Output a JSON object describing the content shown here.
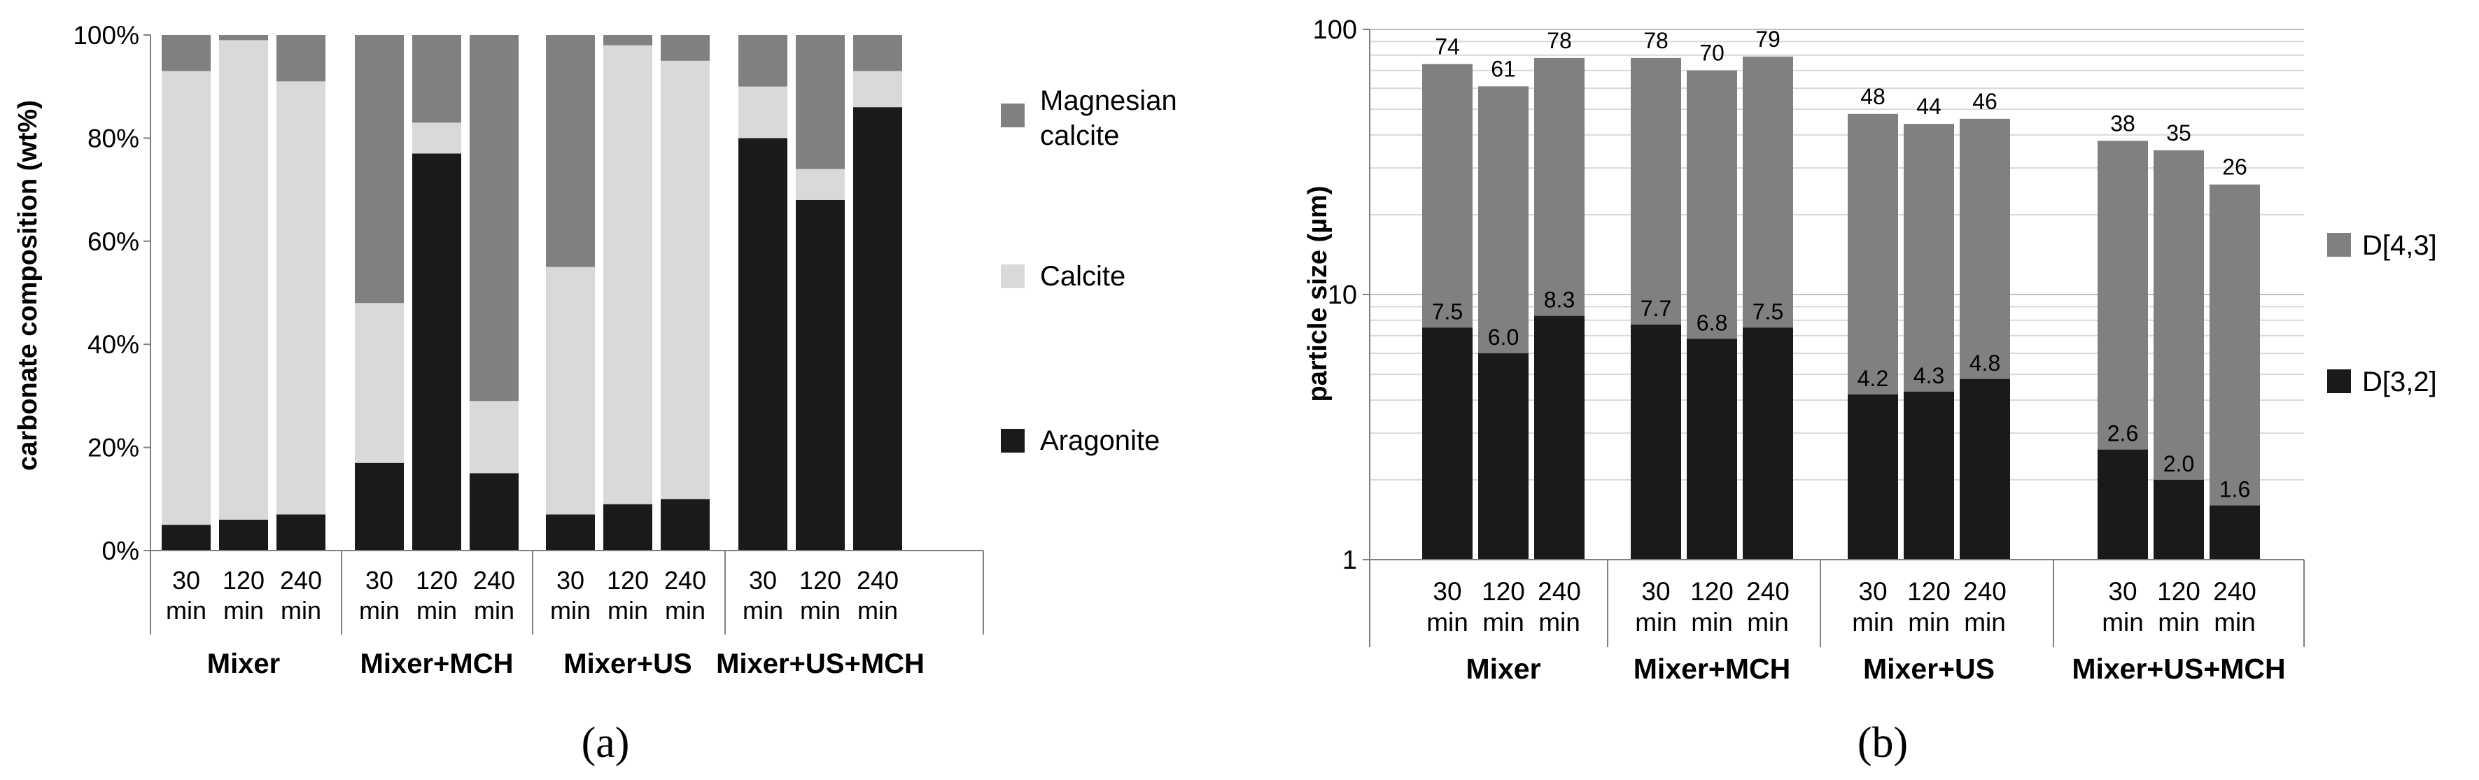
{
  "chart_data": [
    {
      "panel_label": "(a)",
      "type": "bar",
      "stacked": true,
      "ylabel": "carbonate composition (wt%)",
      "ylim": [
        0,
        100
      ],
      "yticks": [
        "0%",
        "20%",
        "40%",
        "60%",
        "80%",
        "100%"
      ],
      "y_tick_values": [
        0,
        20,
        40,
        60,
        80,
        100
      ],
      "groups": [
        {
          "name": "Mixer",
          "times": [
            "30 min",
            "120 min",
            "240 min"
          ]
        },
        {
          "name": "Mixer+MCH",
          "times": [
            "30 min",
            "120 min",
            "240 min"
          ]
        },
        {
          "name": "Mixer+US",
          "times": [
            "30 min",
            "120 min",
            "240 min"
          ]
        },
        {
          "name": "Mixer+US+MCH",
          "times": [
            "30 min",
            "120 min",
            "240 min"
          ]
        }
      ],
      "series": [
        {
          "name": "Aragonite",
          "color": "#1a1a1a",
          "values": [
            5,
            6,
            7,
            17,
            77,
            15,
            7,
            9,
            10,
            80,
            68,
            86
          ]
        },
        {
          "name": "Calcite",
          "color": "#d9d9d9",
          "values": [
            88,
            93,
            84,
            31,
            6,
            14,
            48,
            89,
            85,
            10,
            6,
            7
          ]
        },
        {
          "name": "Magnesian calcite",
          "color": "#808080",
          "values": [
            7,
            1,
            9,
            52,
            17,
            71,
            45,
            2,
            5,
            10,
            26,
            7
          ]
        }
      ],
      "legend_position": "right",
      "grid": false
    },
    {
      "panel_label": "(b)",
      "type": "bar",
      "overlapping": true,
      "ylabel": "particle size (µm)",
      "yscale": "log",
      "ylim": [
        1,
        100
      ],
      "yticks": [
        "1",
        "10",
        "100"
      ],
      "y_tick_values": [
        1,
        10,
        100
      ],
      "groups": [
        {
          "name": "Mixer",
          "times": [
            "30 min",
            "120 min",
            "240 min"
          ]
        },
        {
          "name": "Mixer+MCH",
          "times": [
            "30 min",
            "120 min",
            "240 min"
          ]
        },
        {
          "name": "Mixer+US",
          "times": [
            "30 min",
            "120 min",
            "240 min"
          ]
        },
        {
          "name": "Mixer+US+MCH",
          "times": [
            "30 min",
            "120 min",
            "240 min"
          ]
        }
      ],
      "series": [
        {
          "name": "D[4,3]",
          "color": "#808080",
          "values": [
            74,
            61,
            78,
            78,
            70,
            79,
            48,
            44,
            46,
            38,
            35,
            26
          ],
          "labels": [
            "74",
            "61",
            "78",
            "78",
            "70",
            "79",
            "48",
            "44",
            "46",
            "38",
            "35",
            "26"
          ]
        },
        {
          "name": "D[3,2]",
          "color": "#1a1a1a",
          "values": [
            7.5,
            6.0,
            8.3,
            7.7,
            6.8,
            7.5,
            4.2,
            4.3,
            4.8,
            2.6,
            2.0,
            1.6
          ],
          "labels": [
            "7.5",
            "6.0",
            "8.3",
            "7.7",
            "6.8",
            "7.5",
            "4.2",
            "4.3",
            "4.8",
            "2.6",
            "2.0",
            "1.6"
          ]
        }
      ],
      "legend_position": "right",
      "grid": true
    }
  ]
}
